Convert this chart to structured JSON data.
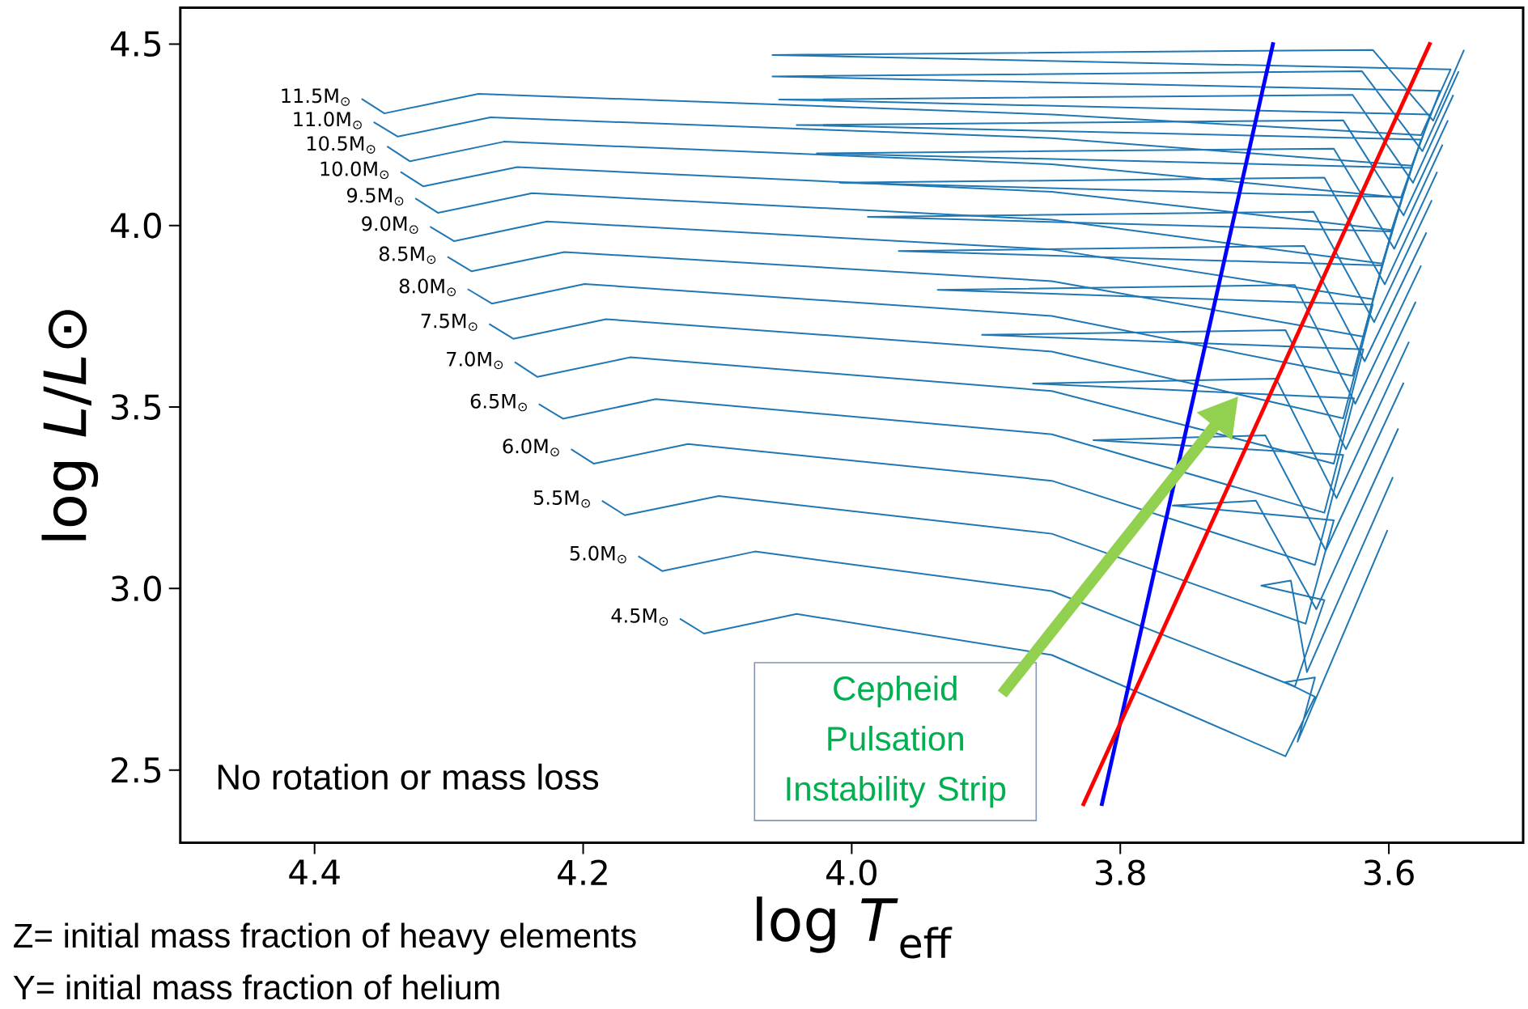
{
  "chart_data": {
    "type": "line",
    "xlabel": "log *T*$_{eff}$",
    "ylabel": "log *L*/*L*⊙",
    "xlim": [
      4.5,
      3.5
    ],
    "ylim": [
      2.3,
      4.6
    ],
    "xticks": [
      {
        "value": 4.4,
        "label": "4.4"
      },
      {
        "value": 4.2,
        "label": "4.2"
      },
      {
        "value": 4.0,
        "label": "4.0"
      },
      {
        "value": 3.8,
        "label": "3.8"
      },
      {
        "value": 3.6,
        "label": "3.6"
      }
    ],
    "yticks": [
      {
        "value": 2.5,
        "label": "2.5"
      },
      {
        "value": 3.0,
        "label": "3.0"
      },
      {
        "value": 3.5,
        "label": "3.5"
      },
      {
        "value": 4.0,
        "label": "4.0"
      },
      {
        "value": 4.5,
        "label": "4.5"
      }
    ],
    "annotations": [
      "No rotation or mass loss",
      "Cepheid Pulsation Instability Strip",
      "Z= initial mass fraction of heavy elements",
      "Y= initial mass fraction of helium"
    ],
    "series": [
      {
        "name": "4.5M$_{⊙}$",
        "color": "#1f77b4",
        "x": [
          4.128,
          4.11,
          4.041,
          3.851,
          3.677,
          3.655,
          3.677,
          3.655,
          3.668,
          3.601
        ],
        "values": [
          2.917,
          2.876,
          2.93,
          2.817,
          2.538,
          2.702,
          2.742,
          2.755,
          2.578,
          3.161
        ]
      },
      {
        "name": "5.0M$_{⊙}$",
        "color": "#1f77b4",
        "x": [
          4.159,
          4.141,
          4.072,
          3.851,
          3.67,
          3.648,
          3.695,
          3.673,
          3.661,
          3.597
        ],
        "values": [
          3.089,
          3.048,
          3.102,
          2.993,
          2.73,
          2.968,
          3.008,
          3.022,
          2.77,
          3.307
        ]
      },
      {
        "name": "5.5M$_{⊙}$",
        "color": "#1f77b4",
        "x": [
          4.186,
          4.169,
          4.099,
          3.851,
          3.662,
          3.641,
          3.761,
          3.699,
          3.654,
          3.593
        ],
        "values": [
          3.242,
          3.202,
          3.255,
          3.151,
          2.903,
          3.188,
          3.229,
          3.242,
          2.943,
          3.441
        ]
      },
      {
        "name": "6.0M$_{⊙}$",
        "color": "#1f77b4",
        "x": [
          4.209,
          4.192,
          4.122,
          3.851,
          3.655,
          3.634,
          3.82,
          3.692,
          3.647,
          3.589
        ],
        "values": [
          3.384,
          3.344,
          3.398,
          3.297,
          3.065,
          3.368,
          3.409,
          3.422,
          3.105,
          3.567
        ]
      },
      {
        "name": "6.5M$_{⊙}$",
        "color": "#1f77b4",
        "x": [
          4.233,
          4.215,
          4.146,
          3.851,
          3.648,
          3.626,
          3.865,
          3.684,
          3.639,
          3.585
        ],
        "values": [
          3.508,
          3.468,
          3.522,
          3.425,
          3.209,
          3.524,
          3.565,
          3.578,
          3.249,
          3.68
        ]
      },
      {
        "name": "7.0M$_{⊙}$",
        "color": "#1f77b4",
        "x": [
          4.251,
          4.234,
          4.165,
          3.851,
          3.641,
          3.619,
          3.903,
          3.677,
          3.632,
          3.58
        ],
        "values": [
          3.624,
          3.583,
          3.637,
          3.544,
          3.344,
          3.659,
          3.699,
          3.712,
          3.384,
          3.79
        ]
      },
      {
        "name": "7.5M$_{⊙}$",
        "color": "#1f77b4",
        "x": [
          4.27,
          4.252,
          4.183,
          3.851,
          3.634,
          3.612,
          3.936,
          3.67,
          3.625,
          3.576
        ],
        "values": [
          3.729,
          3.688,
          3.742,
          3.653,
          3.469,
          3.782,
          3.823,
          3.836,
          3.509,
          3.89
        ]
      },
      {
        "name": "8.0M$_{⊙}$",
        "color": "#1f77b4",
        "x": [
          4.286,
          4.268,
          4.199,
          3.851,
          3.627,
          3.605,
          3.965,
          3.663,
          3.618,
          3.572
        ],
        "values": [
          3.825,
          3.785,
          3.839,
          3.751,
          3.586,
          3.89,
          3.93,
          3.944,
          3.626,
          3.981
        ]
      },
      {
        "name": "8.5M$_{⊙}$",
        "color": "#1f77b4",
        "x": [
          4.301,
          4.283,
          4.214,
          3.851,
          3.619,
          3.598,
          3.988,
          3.656,
          3.611,
          3.568
        ],
        "values": [
          3.914,
          3.874,
          3.927,
          3.847,
          3.694,
          3.984,
          4.024,
          4.038,
          3.734,
          4.07
        ]
      },
      {
        "name": "9.0M$_{⊙}$",
        "color": "#1f77b4",
        "x": [
          4.314,
          4.296,
          4.227,
          3.851,
          3.612,
          3.59,
          4.009,
          3.648,
          3.603,
          3.564
        ],
        "values": [
          3.997,
          3.957,
          4.011,
          3.934,
          3.797,
          4.078,
          4.118,
          4.132,
          3.838,
          4.148
        ]
      },
      {
        "name": "9.5M$_{⊙}$",
        "color": "#1f77b4",
        "x": [
          4.325,
          4.308,
          4.238,
          3.851,
          3.605,
          3.583,
          4.026,
          3.641,
          3.596,
          3.56
        ],
        "values": [
          4.075,
          4.035,
          4.089,
          4.016,
          3.895,
          4.159,
          4.199,
          4.212,
          3.936,
          4.223
        ]
      },
      {
        "name": "10.0M$_{⊙}$",
        "color": "#1f77b4",
        "x": [
          4.336,
          4.319,
          4.249,
          3.851,
          3.598,
          3.576,
          4.041,
          3.634,
          3.589,
          3.556
        ],
        "values": [
          4.148,
          4.108,
          4.161,
          4.093,
          3.988,
          4.237,
          4.277,
          4.29,
          4.028,
          4.29
        ]
      },
      {
        "name": "10.5M$_{⊙}$",
        "color": "#1f77b4",
        "x": [
          4.346,
          4.329,
          4.259,
          3.851,
          3.591,
          3.569,
          4.054,
          3.627,
          3.582,
          3.552
        ],
        "values": [
          4.218,
          4.177,
          4.231,
          4.169,
          4.077,
          4.306,
          4.347,
          4.36,
          4.118,
          4.36
        ]
      },
      {
        "name": "11.0M$_{⊙}$",
        "color": "#1f77b4",
        "x": [
          4.356,
          4.338,
          4.269,
          3.851,
          3.583,
          3.562,
          4.059,
          3.62,
          3.575,
          3.548
        ],
        "values": [
          4.285,
          4.245,
          4.298,
          4.241,
          4.165,
          4.371,
          4.411,
          4.425,
          4.205,
          4.425
        ]
      },
      {
        "name": "11.5M$_{⊙}$",
        "color": "#1f77b4",
        "x": [
          4.365,
          4.348,
          4.278,
          3.851,
          3.576,
          3.554,
          4.059,
          3.612,
          3.567,
          3.544
        ],
        "values": [
          4.349,
          4.309,
          4.363,
          4.306,
          4.249,
          4.43,
          4.47,
          4.484,
          4.289,
          4.484
        ]
      },
      {
        "color": "#0000ff",
        "x": [
          3.814,
          3.686
        ],
        "values": [
          2.401,
          4.505
        ]
      },
      {
        "color": "#ff0000",
        "x": [
          3.828,
          3.569
        ],
        "values": [
          2.401,
          4.505
        ]
      }
    ]
  }
}
